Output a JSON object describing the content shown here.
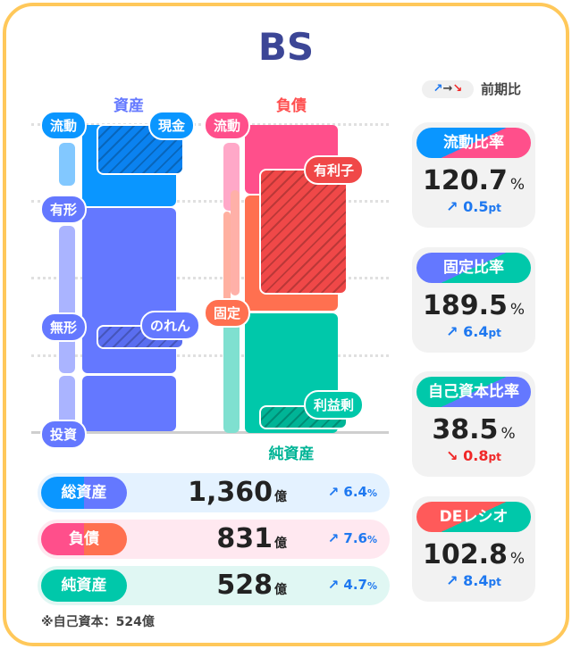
{
  "title": "BS",
  "legend": {
    "arrows": "↗→↘",
    "label": "前期比"
  },
  "chart": {
    "assets_header": "資産",
    "liabilities_header": "負債",
    "net_assets_footer": "純資産",
    "labels": {
      "current_assets": "流動",
      "cash": "現金",
      "tangible": "有形",
      "intangible": "無形",
      "goodwill": "のれん",
      "investments": "投資",
      "current_liabilities": "流動",
      "interest_bearing": "有利子",
      "fixed_liabilities": "固定",
      "retained_earnings": "利益剰"
    },
    "colors": {
      "current_assets": "#0a96ff",
      "fixed_assets": "#6478ff",
      "current_liabilities": "#ff4f8b",
      "fixed_liabilities": "#ff7050",
      "interest_bearing": "#f04848",
      "net_assets": "#00c8aa"
    }
  },
  "ratios": [
    {
      "label": "流動比率",
      "value": "120.7",
      "unit": "%",
      "arrow": "↗",
      "change": "0.5",
      "change_unit": "pt",
      "direction": "up",
      "colors": [
        "#0a96ff",
        "#ff4f8b"
      ]
    },
    {
      "label": "固定比率",
      "value": "189.5",
      "unit": "%",
      "arrow": "↗",
      "change": "6.4",
      "change_unit": "pt",
      "direction": "up",
      "colors": [
        "#6478ff",
        "#00c8aa"
      ]
    },
    {
      "label": "自己資本比率",
      "value": "38.5",
      "unit": "%",
      "arrow": "↘",
      "change": "0.8",
      "change_unit": "pt",
      "direction": "down",
      "colors": [
        "#00c8aa",
        "#6478ff"
      ]
    },
    {
      "label": "DEレシオ",
      "value": "102.8",
      "unit": "%",
      "arrow": "↗",
      "change": "8.4",
      "change_unit": "pt",
      "direction": "up",
      "colors": [
        "#ff5a5a",
        "#00c8aa"
      ]
    }
  ],
  "totals": [
    {
      "label": "総資産",
      "value": "1,360",
      "unit": "億",
      "arrow": "↗",
      "change": "6.4",
      "change_unit": "%"
    },
    {
      "label": "負債",
      "value": "831",
      "unit": "億",
      "arrow": "↗",
      "change": "7.6",
      "change_unit": "%"
    },
    {
      "label": "純資産",
      "value": "528",
      "unit": "億",
      "arrow": "↗",
      "change": "4.7",
      "change_unit": "%"
    }
  ],
  "footnote": "※自己資本：524億"
}
